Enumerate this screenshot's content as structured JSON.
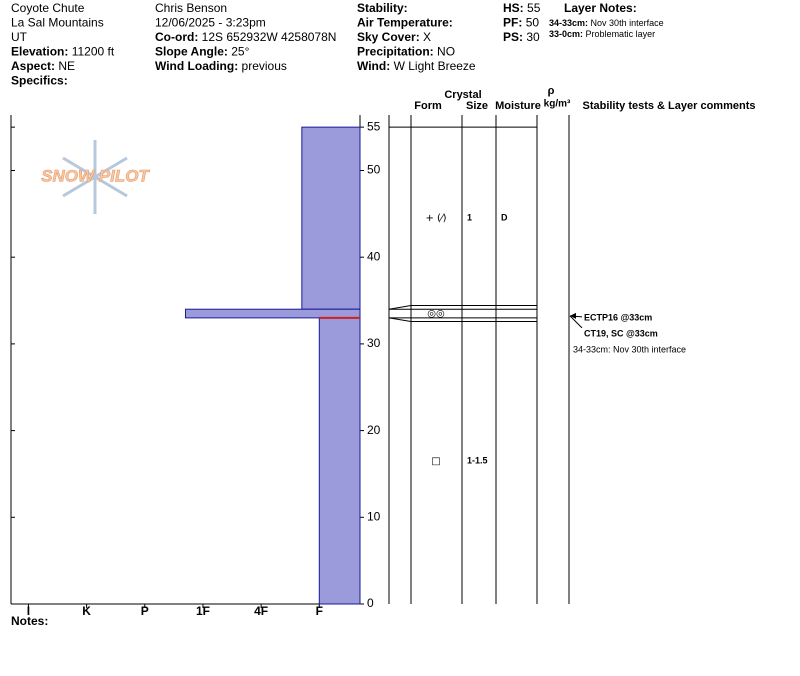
{
  "header": {
    "col1": [
      {
        "value": "Coyote Chute"
      },
      {
        "value": "La Sal Mountains"
      },
      {
        "value": "UT"
      },
      {
        "label": "Elevation:",
        "value": "11200 ft"
      },
      {
        "label": "Aspect:",
        "value": "NE"
      },
      {
        "label": "Specifics:"
      }
    ],
    "col2": [
      {
        "value": "Chris Benson"
      },
      {
        "value": "12/06/2025 - 3:23pm"
      },
      {
        "label": "Co-ord:",
        "value": "12S 652932W 4258078N"
      },
      {
        "label": "Slope Angle:",
        "value": "25°"
      },
      {
        "label": "Wind Loading:",
        "value": "previous"
      }
    ],
    "col3": [
      {
        "label": "Stability:"
      },
      {
        "label": "Air Temperature:"
      },
      {
        "label": "Sky Cover:",
        "value": "X"
      },
      {
        "label": "Precipitation:",
        "value": "NO"
      },
      {
        "label": "Wind:",
        "value": "W Light Breeze"
      }
    ],
    "col4": [
      {
        "label": "HS:",
        "value": "55"
      },
      {
        "label": "PF:",
        "value": "50"
      },
      {
        "label": "PS:",
        "value": "30"
      }
    ],
    "layer_notes": {
      "title": "Layer Notes:",
      "items": [
        {
          "label": "34-33cm:",
          "value": "Nov 30th interface"
        },
        {
          "label": "33-0cm:",
          "value": "Problematic layer"
        }
      ]
    }
  },
  "chart_data": {
    "type": "snow-profile",
    "ylim": [
      0,
      56.4
    ],
    "yticks": [
      0,
      10,
      20,
      30,
      40,
      50,
      55
    ],
    "xlim": [
      6.3,
      0.3
    ],
    "xticks": [
      {
        "value": 6,
        "label": "I"
      },
      {
        "value": 5,
        "label": "K"
      },
      {
        "value": 4,
        "label": "P"
      },
      {
        "value": 3,
        "label": "1F"
      },
      {
        "value": 2,
        "label": "4F"
      },
      {
        "value": 1,
        "label": "F"
      }
    ],
    "color": "#9b9bdb",
    "edge_color": "#1a1a99",
    "concern_color": "#cc2222",
    "concern_depth": 33,
    "layers": [
      {
        "top": 55,
        "bottom": 34,
        "hardness": 1.3,
        "form": "+ (⁄)",
        "size": "1",
        "moisture": "D"
      },
      {
        "top": 34,
        "bottom": 33,
        "hardness": 3.3,
        "form": "◎◎"
      },
      {
        "top": 33,
        "bottom": 0,
        "hardness": 1,
        "form": "□",
        "size": "1-1.5"
      }
    ],
    "table_headers": {
      "crystal": "Crystal",
      "form": "Form",
      "size": "Size",
      "moisture": "Moisture",
      "rho": "ρ",
      "density": "kg/m³",
      "comments": "Stability tests & Layer comments"
    },
    "tests": [
      "ECTP16 @33cm",
      "CT19, SC @33cm"
    ],
    "comments": [
      "34-33cm: Nov 30th interface"
    ],
    "watermark": "SNOW PILOT",
    "notes_label": "Notes:"
  }
}
